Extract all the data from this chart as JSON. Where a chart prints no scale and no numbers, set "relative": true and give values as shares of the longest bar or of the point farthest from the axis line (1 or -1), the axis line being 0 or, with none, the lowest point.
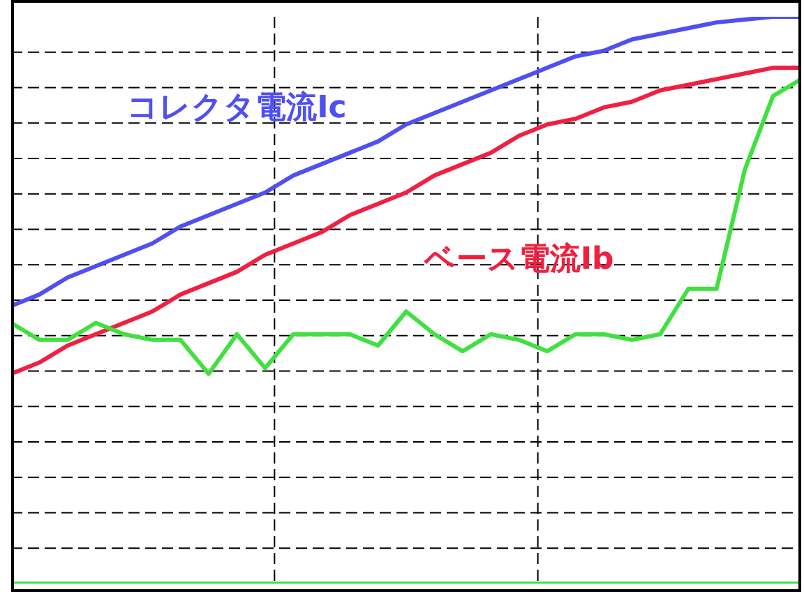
{
  "chart_data": {
    "type": "line",
    "relative": true,
    "grid": true,
    "legend": false,
    "categories": [
      null,
      null,
      null,
      null,
      null,
      null,
      null,
      null,
      null,
      null,
      null,
      null,
      null,
      null,
      null,
      null,
      null,
      null,
      null,
      null,
      null,
      null,
      null,
      null,
      null,
      null,
      null,
      null,
      null
    ],
    "series": [
      {
        "name": "コレクタ電流Ic",
        "color": "#5050f0",
        "values": [
          0.49,
          0.51,
          0.54,
          0.56,
          0.58,
          0.6,
          0.63,
          0.65,
          0.67,
          0.69,
          0.72,
          0.74,
          0.76,
          0.78,
          0.81,
          0.83,
          0.85,
          0.87,
          0.89,
          0.91,
          0.93,
          0.94,
          0.96,
          0.97,
          0.98,
          0.99,
          0.995,
          1,
          1
        ]
      },
      {
        "name": "ベース電流Ib",
        "color": "#f02040",
        "values": [
          0.37,
          0.39,
          0.42,
          0.44,
          0.46,
          0.48,
          0.51,
          0.53,
          0.55,
          0.58,
          0.6,
          0.62,
          0.65,
          0.67,
          0.69,
          0.72,
          0.74,
          0.76,
          0.79,
          0.81,
          0.82,
          0.84,
          0.85,
          0.87,
          0.88,
          0.89,
          0.9,
          0.91,
          0.91
        ]
      },
      {
        "color": "#40e040",
        "values": [
          0.46,
          0.43,
          0.43,
          0.46,
          0.44,
          0.43,
          0.43,
          0.37,
          0.44,
          0.38,
          0.44,
          0.44,
          0.44,
          0.42,
          0.48,
          0.44,
          0.41,
          0.44,
          0.43,
          0.41,
          0.44,
          0.44,
          0.43,
          0.44,
          0.52,
          0.52,
          0.73,
          0.86,
          0.89
        ]
      },
      {
        "color": "#40e040",
        "values": [
          0,
          0,
          0,
          0,
          0,
          0,
          0,
          0,
          0,
          0,
          0,
          0,
          0,
          0,
          0,
          0,
          0,
          0,
          0,
          0,
          0,
          0,
          0,
          0,
          0,
          0,
          0,
          0,
          0
        ]
      }
    ]
  }
}
